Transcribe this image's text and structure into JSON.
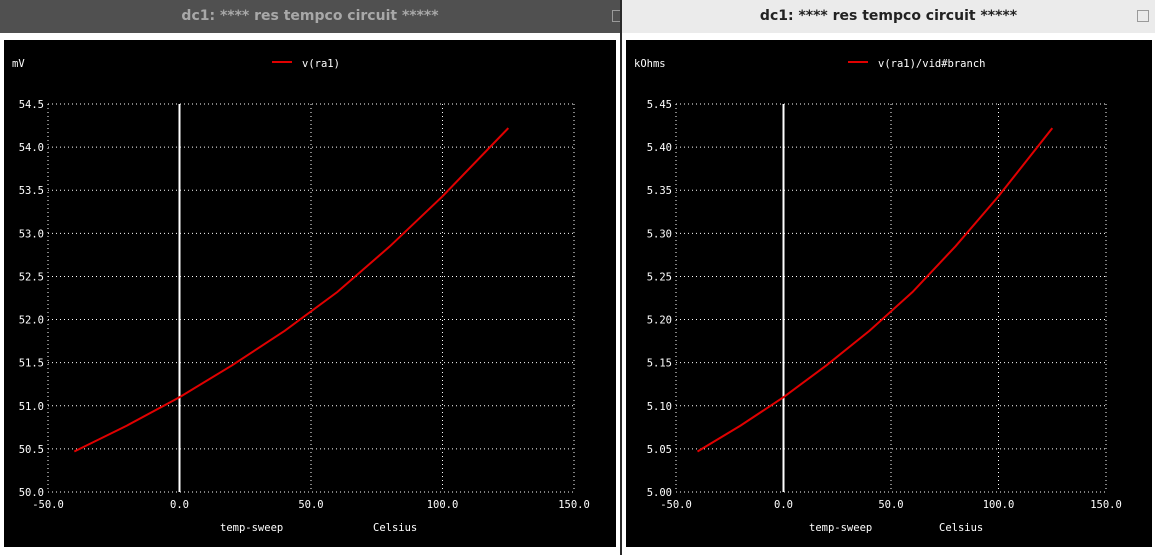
{
  "windows": [
    {
      "title": "dc1: **** res tempco circuit *****",
      "unit_label": "mV",
      "legend": "v(ra1)",
      "x_axis_label": "temp-sweep",
      "x_unit_label": "Celsius",
      "x_ticks": [
        "-50.0",
        "0.0",
        "50.0",
        "100.0",
        "150.0"
      ],
      "y_ticks": [
        "50.0",
        "50.5",
        "51.0",
        "51.5",
        "52.0",
        "52.5",
        "53.0",
        "53.5",
        "54.0",
        "54.5"
      ],
      "colors": {
        "trace": "#e00000",
        "grid": "#ffffff",
        "background": "#000000"
      },
      "chart_data": {
        "type": "line",
        "xlim": [
          -50,
          150
        ],
        "ylim": [
          50.0,
          54.5
        ],
        "grid": true,
        "legend_position": "top-center",
        "series": [
          {
            "name": "v(ra1)",
            "x": [
              -40,
              -20,
              0,
              20,
              40,
              60,
              80,
              100,
              125
            ],
            "y": [
              50.47,
              50.77,
              51.1,
              51.47,
              51.87,
              52.32,
              52.85,
              53.43,
              54.22
            ]
          }
        ]
      }
    },
    {
      "title": "dc1: **** res tempco circuit *****",
      "unit_label": "kOhms",
      "legend": "v(ra1)/vid#branch",
      "x_axis_label": "temp-sweep",
      "x_unit_label": "Celsius",
      "x_ticks": [
        "-50.0",
        "0.0",
        "50.0",
        "100.0",
        "150.0"
      ],
      "y_ticks": [
        "5.00",
        "5.05",
        "5.10",
        "5.15",
        "5.20",
        "5.25",
        "5.30",
        "5.35",
        "5.40",
        "5.45"
      ],
      "colors": {
        "trace": "#e00000",
        "grid": "#ffffff",
        "background": "#000000"
      },
      "chart_data": {
        "type": "line",
        "xlim": [
          -50,
          150
        ],
        "ylim": [
          5.0,
          5.45
        ],
        "grid": true,
        "legend_position": "top-center",
        "series": [
          {
            "name": "v(ra1)/vid#branch",
            "x": [
              -40,
              -20,
              0,
              20,
              40,
              60,
              80,
              100,
              125
            ],
            "y": [
              5.047,
              5.077,
              5.11,
              5.147,
              5.187,
              5.232,
              5.285,
              5.343,
              5.422
            ]
          }
        ]
      }
    }
  ]
}
